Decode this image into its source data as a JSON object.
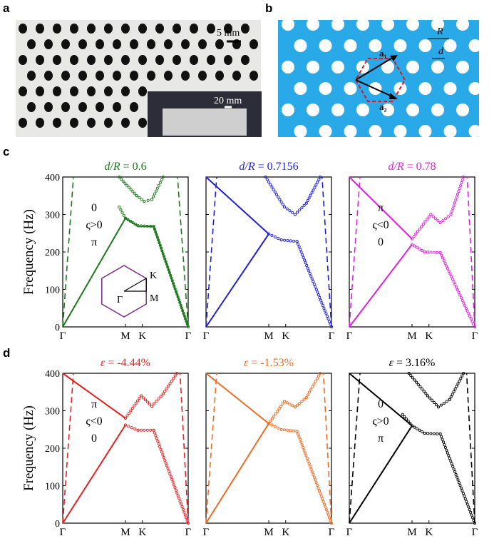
{
  "panels": {
    "a": "a",
    "b": "b",
    "c": "c",
    "d": "d"
  },
  "photo": {
    "scale_main": "5 mm",
    "scale_inset": "20 mm"
  },
  "lattice": {
    "R_label": "R",
    "d_label": "d",
    "a1_label": "a₁",
    "a2_label": "a₂",
    "background": "#2aa9e8",
    "cell_color": "#e0141b"
  },
  "axes": {
    "ylabel": "Frequency (Hz)",
    "yticks": [
      "0",
      "100",
      "200",
      "300",
      "400"
    ],
    "xticks": [
      "Γ",
      "M",
      "K",
      "Γ"
    ]
  },
  "inset": {
    "K": "K",
    "M": "M",
    "Gamma": "Γ"
  },
  "chart_data": [
    {
      "type": "line",
      "id": "c1",
      "title_var": "d/R",
      "title_rest": " = 0.6",
      "color": "#1a7a1a",
      "ylim": [
        0,
        400
      ],
      "x": [
        "Γ",
        "M",
        "K",
        "Γ"
      ],
      "annotations": [
        "0",
        "ς>0",
        "π"
      ],
      "series": [
        {
          "style": "solid",
          "points": [
            [
              0,
              0
            ],
            [
              1,
              290
            ],
            [
              1.2,
              268
            ],
            [
              1.45,
              268
            ],
            [
              2,
              0
            ]
          ]
        },
        {
          "style": "dots",
          "points": [
            [
              0.9,
              320
            ],
            [
              1,
              290
            ],
            [
              1.2,
              270
            ],
            [
              1.45,
              268
            ],
            [
              2,
              0
            ]
          ]
        },
        {
          "style": "dots",
          "points": [
            [
              0.9,
              400
            ],
            [
              1.18,
              350
            ],
            [
              1.3,
              335
            ],
            [
              1.42,
              340
            ],
            [
              1.6,
              400
            ]
          ]
        },
        {
          "style": "dashed",
          "points": [
            [
              0,
              0
            ],
            [
              0.17,
              400
            ]
          ]
        },
        {
          "style": "dashed",
          "points": [
            [
              2,
              0
            ],
            [
              1.83,
              400
            ]
          ]
        }
      ]
    },
    {
      "type": "line",
      "id": "c2",
      "title_var": "d/R",
      "title_rest": " = 0.7156",
      "color": "#1f1fd6",
      "ylim": [
        0,
        400
      ],
      "x": [
        "Γ",
        "M",
        "K",
        "Γ"
      ],
      "annotations": [],
      "series": [
        {
          "style": "solid",
          "points": [
            [
              0,
              0
            ],
            [
              1,
              248
            ]
          ]
        },
        {
          "style": "solid",
          "points": [
            [
              0,
              400
            ],
            [
              1,
              248
            ]
          ]
        },
        {
          "style": "dots",
          "points": [
            [
              1,
              248
            ],
            [
              1.2,
              232
            ],
            [
              1.45,
              228
            ],
            [
              2,
              0
            ]
          ]
        },
        {
          "style": "dots",
          "points": [
            [
              0.95,
              400
            ],
            [
              1.25,
              320
            ],
            [
              1.42,
              300
            ],
            [
              1.6,
              330
            ],
            [
              1.82,
              400
            ]
          ]
        },
        {
          "style": "dashed",
          "points": [
            [
              0,
              0
            ],
            [
              0.17,
              400
            ]
          ]
        },
        {
          "style": "dashed",
          "points": [
            [
              2,
              0
            ],
            [
              1.85,
              400
            ]
          ]
        }
      ]
    },
    {
      "type": "line",
      "id": "c3",
      "title_var": "d/R",
      "title_rest": " = 0.78",
      "color": "#e020e0",
      "ylim": [
        0,
        400
      ],
      "x": [
        "Γ",
        "M",
        "K",
        "Γ"
      ],
      "annotations": [
        "π",
        "ς<0",
        "0"
      ],
      "series": [
        {
          "style": "solid",
          "points": [
            [
              0,
              0
            ],
            [
              1,
              220
            ]
          ]
        },
        {
          "style": "solid",
          "points": [
            [
              0,
              400
            ],
            [
              1,
              235
            ]
          ]
        },
        {
          "style": "dots",
          "points": [
            [
              1,
              220
            ],
            [
              1.2,
              200
            ],
            [
              1.45,
              198
            ],
            [
              2,
              0
            ]
          ]
        },
        {
          "style": "dots",
          "points": [
            [
              1,
              235
            ],
            [
              1.3,
              300
            ],
            [
              1.45,
              278
            ],
            [
              1.62,
              300
            ],
            [
              1.82,
              400
            ]
          ]
        },
        {
          "style": "dashed",
          "points": [
            [
              0,
              0
            ],
            [
              0.17,
              400
            ]
          ]
        },
        {
          "style": "dashed",
          "points": [
            [
              2,
              0
            ],
            [
              1.88,
              400
            ]
          ]
        }
      ]
    },
    {
      "type": "line",
      "id": "d1",
      "title_var": "ε",
      "title_rest": " = -4.44%",
      "color": "#e82020",
      "ylim": [
        0,
        400
      ],
      "x": [
        "Γ",
        "M",
        "K",
        "Γ"
      ],
      "annotations": [
        "π",
        "ς<0",
        "0"
      ],
      "series": [
        {
          "style": "solid",
          "points": [
            [
              0,
              0
            ],
            [
              1,
              262
            ]
          ]
        },
        {
          "style": "solid",
          "points": [
            [
              0,
              400
            ],
            [
              1,
              280
            ]
          ]
        },
        {
          "style": "dots",
          "points": [
            [
              1,
              262
            ],
            [
              1.2,
              248
            ],
            [
              1.45,
              248
            ],
            [
              2,
              0
            ]
          ]
        },
        {
          "style": "dots",
          "points": [
            [
              1,
              280
            ],
            [
              1.25,
              340
            ],
            [
              1.42,
              312
            ],
            [
              1.6,
              345
            ],
            [
              1.82,
              400
            ]
          ]
        },
        {
          "style": "dashed",
          "points": [
            [
              0,
              0
            ],
            [
              0.17,
              400
            ]
          ]
        },
        {
          "style": "dashed",
          "points": [
            [
              2,
              0
            ],
            [
              1.87,
              400
            ]
          ]
        }
      ]
    },
    {
      "type": "line",
      "id": "d2",
      "title_var": "ε",
      "title_rest": " = -1.53%",
      "color": "#f26a1f",
      "ylim": [
        0,
        400
      ],
      "x": [
        "Γ",
        "M",
        "K",
        "Γ"
      ],
      "annotations": [],
      "series": [
        {
          "style": "solid",
          "points": [
            [
              0,
              0
            ],
            [
              1,
              266
            ]
          ]
        },
        {
          "style": "solid",
          "points": [
            [
              0,
              400
            ],
            [
              1,
              266
            ]
          ]
        },
        {
          "style": "dots",
          "points": [
            [
              1,
              266
            ],
            [
              1.2,
              250
            ],
            [
              1.45,
              245
            ],
            [
              2,
              0
            ]
          ]
        },
        {
          "style": "dots",
          "points": [
            [
              1,
              266
            ],
            [
              1.25,
              325
            ],
            [
              1.42,
              310
            ],
            [
              1.6,
              335
            ],
            [
              1.82,
              400
            ]
          ]
        },
        {
          "style": "dashed",
          "points": [
            [
              0,
              0
            ],
            [
              0.17,
              400
            ]
          ]
        },
        {
          "style": "dashed",
          "points": [
            [
              2,
              0
            ],
            [
              1.87,
              400
            ]
          ]
        }
      ]
    },
    {
      "type": "line",
      "id": "d3",
      "title_var": "ε",
      "title_rest": " = 3.16%",
      "color": "#000000",
      "ylim": [
        0,
        400
      ],
      "x": [
        "Γ",
        "M",
        "K",
        "Γ"
      ],
      "annotations": [
        "0",
        "ς>0",
        "π"
      ],
      "series": [
        {
          "style": "solid",
          "points": [
            [
              0,
              0
            ],
            [
              1,
              260
            ]
          ]
        },
        {
          "style": "solid",
          "points": [
            [
              0,
              400
            ],
            [
              1,
              260
            ]
          ]
        },
        {
          "style": "dots",
          "points": [
            [
              0.85,
              290
            ],
            [
              1,
              260
            ],
            [
              1.2,
              240
            ],
            [
              1.45,
              238
            ],
            [
              2,
              0
            ]
          ]
        },
        {
          "style": "dots",
          "points": [
            [
              0.95,
              400
            ],
            [
              1.25,
              340
            ],
            [
              1.42,
              310
            ],
            [
              1.6,
              330
            ],
            [
              1.82,
              400
            ]
          ]
        },
        {
          "style": "dashed",
          "points": [
            [
              0,
              0
            ],
            [
              0.17,
              400
            ]
          ]
        },
        {
          "style": "dashed",
          "points": [
            [
              2,
              0
            ],
            [
              1.87,
              400
            ]
          ]
        }
      ]
    }
  ]
}
